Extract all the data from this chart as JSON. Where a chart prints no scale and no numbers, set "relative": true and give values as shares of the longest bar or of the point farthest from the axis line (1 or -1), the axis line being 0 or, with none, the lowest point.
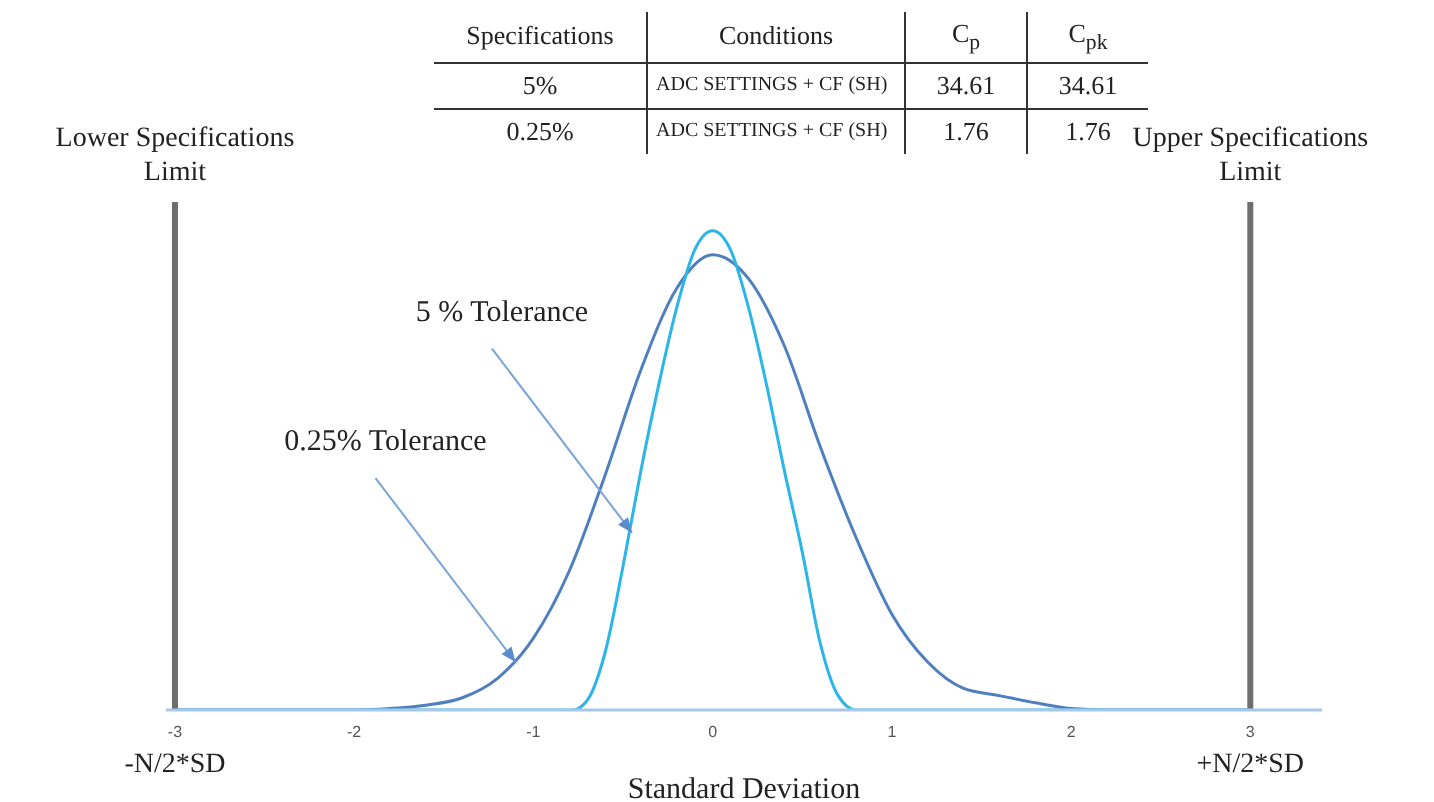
{
  "chart_data": [
    {
      "type": "line",
      "relative": true,
      "xlabel": "Standard Deviation",
      "xlim": [
        -3.05,
        3.4
      ],
      "xticks": [
        -3,
        -2,
        -1,
        0,
        1,
        2,
        3
      ],
      "marker": "none",
      "line_style": "solid",
      "series": [
        {
          "color": "#4f7fbf",
          "x": [
            -3,
            -2.5,
            -2,
            -1.8,
            -1.6,
            -1.4,
            -1.2,
            -1.0,
            -0.8,
            -0.6,
            -0.4,
            -0.2,
            0,
            0.2,
            0.4,
            0.6,
            0.8,
            1.0,
            1.2,
            1.4,
            1.6,
            1.8,
            2.0,
            2.2,
            2.6,
            3
          ],
          "values": [
            0,
            0,
            0,
            0.003,
            0.01,
            0.025,
            0.066,
            0.15,
            0.29,
            0.49,
            0.71,
            0.88,
            0.95,
            0.9,
            0.76,
            0.55,
            0.36,
            0.2,
            0.1,
            0.045,
            0.03,
            0.015,
            0.003,
            0,
            0,
            0
          ]
        },
        {
          "color": "#2bb5e8",
          "x": [
            -3,
            -2,
            -1,
            -0.78,
            -0.7,
            -0.6,
            -0.5,
            -0.4,
            -0.3,
            -0.2,
            -0.1,
            0,
            0.1,
            0.2,
            0.3,
            0.4,
            0.5,
            0.6,
            0.7,
            0.8,
            1,
            2,
            3
          ],
          "values": [
            0,
            0,
            0,
            0,
            0.02,
            0.12,
            0.3,
            0.5,
            0.68,
            0.84,
            0.96,
            1,
            0.96,
            0.84,
            0.68,
            0.5,
            0.33,
            0.14,
            0.03,
            0,
            0,
            0,
            0
          ]
        }
      ],
      "ref_lines": [
        {
          "axis": "x",
          "value": -3,
          "label": "Lower Specifications Limit",
          "color": "#6e6e6e"
        },
        {
          "axis": "x",
          "value": 3,
          "label": "Upper Specifications Limit",
          "color": "#6e6e6e"
        }
      ],
      "annotations": [
        {
          "text": "5 % Tolerance",
          "x": -0.45,
          "y": 0.37
        },
        {
          "text": "0.25% Tolerance",
          "x": -1.1,
          "y": 0.1
        },
        {
          "text": "-N/2*SD",
          "x": -3,
          "y": 0
        },
        {
          "text": "+N/2*SD",
          "x": 3,
          "y": 0
        }
      ]
    },
    {
      "type": "other",
      "categories": [
        "Specifications",
        "Conditions",
        "C$_{p}$",
        "C$_{pk}$"
      ],
      "annotations": [
        "5%",
        "ADC SETTINGS + CF (SH)",
        "34.61",
        "34.61",
        "0.25%",
        "ADC SETTINGS + CF (SH)",
        "1.76",
        "1.76"
      ]
    }
  ]
}
